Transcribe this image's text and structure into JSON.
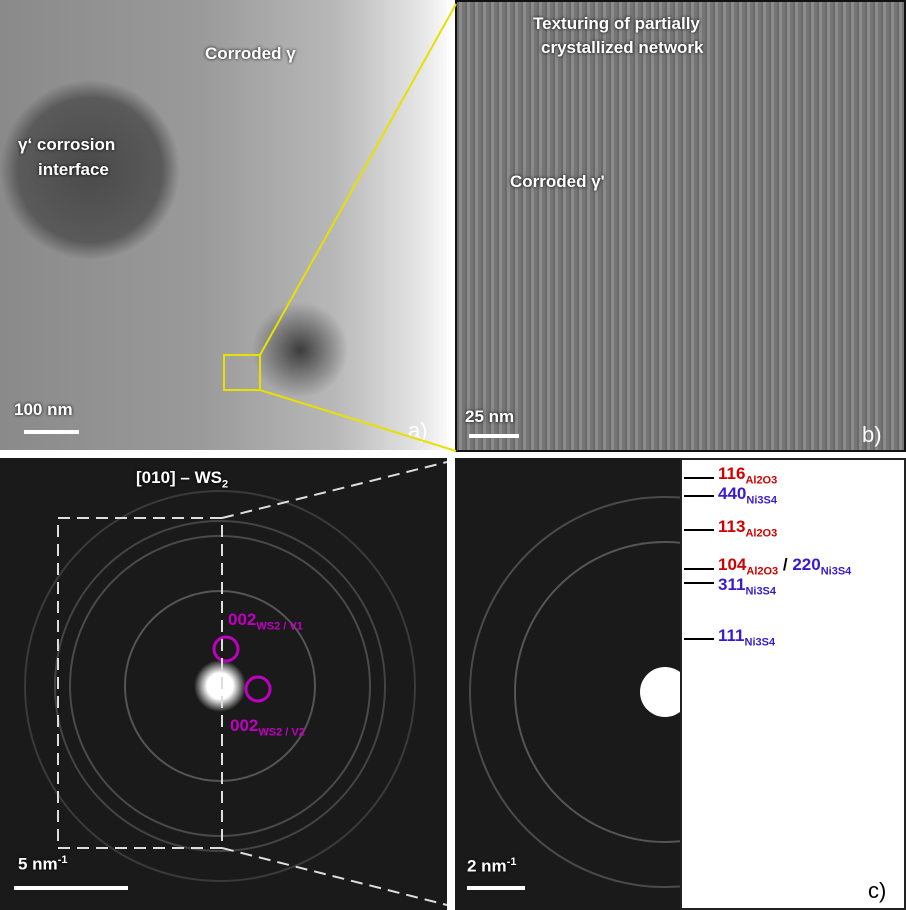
{
  "panel_a": {
    "label_gamma": "Corroded γ",
    "label_interface_1": "γ‘ corrosion",
    "label_interface_2": "interface",
    "scale": "100 nm",
    "panel_letter": "a)"
  },
  "panel_b": {
    "title_1": "Texturing of partially",
    "title_2": "crystallized network",
    "label": "Corroded γ'",
    "scale": "25 nm",
    "panel_letter": "b)"
  },
  "panel_c": {
    "zone_axis": "[010] – WS",
    "zone_axis_sub": "2",
    "spot1": "002",
    "spot1_sub": "WS2 / V1",
    "spot2": "002",
    "spot2_sub": "WS2 / V2",
    "scale_left": "5 nm",
    "scale_left_sup": "-1",
    "scale_right": "2 nm",
    "scale_right_sup": "-1",
    "panel_letter": "c)",
    "rings": [
      {
        "index": "116",
        "phase": "Al2O3",
        "color": "#d00000"
      },
      {
        "index": "440",
        "phase": "Ni3S4",
        "color": "#3a1ad0"
      },
      {
        "index": "113",
        "phase": "Al2O3",
        "color": "#d00000"
      },
      {
        "index": "104",
        "phase": "Al2O3",
        "color": "#d00000",
        "alt_index": "220",
        "alt_phase": "Ni3S4",
        "alt_color": "#3a1ad0"
      },
      {
        "index": "311",
        "phase": "Ni3S4",
        "color": "#3a1ad0"
      },
      {
        "index": "111",
        "phase": "Ni3S4",
        "color": "#3a1ad0"
      }
    ]
  },
  "colors": {
    "zoom_box": "#e8e000",
    "annotation": "#c000c0"
  }
}
